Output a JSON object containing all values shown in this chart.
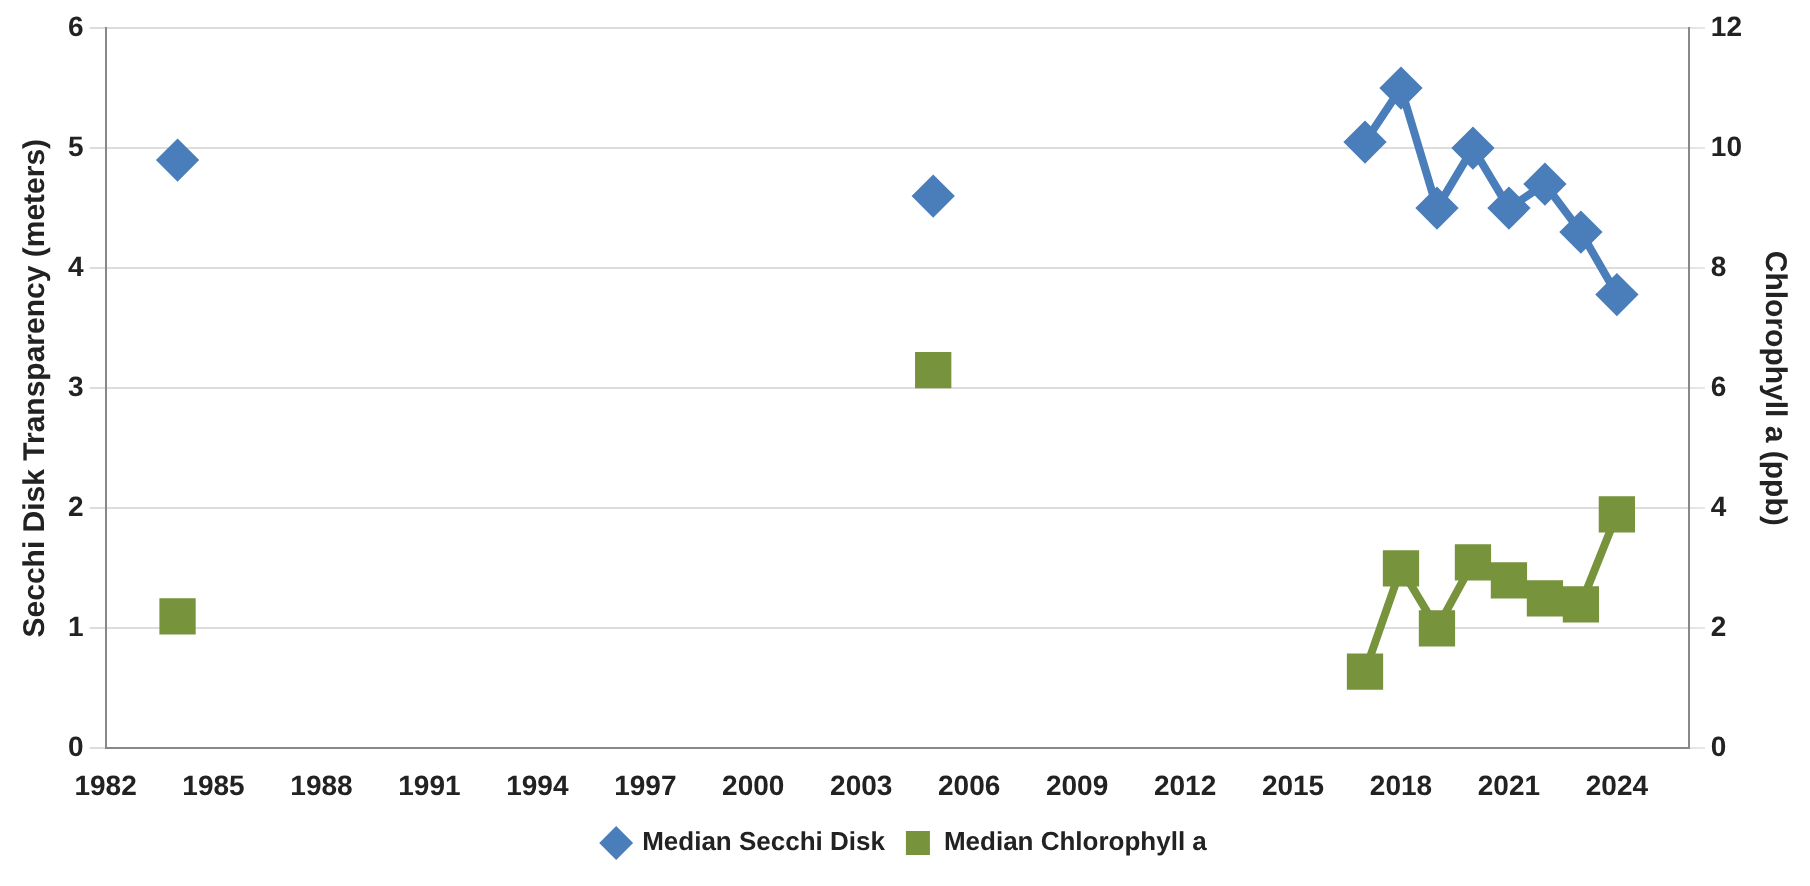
{
  "chart_data": {
    "type": "line",
    "ylabel": "Secchi Disk Transparency (meters)",
    "y2label": "Chlorophyll a (ppb)",
    "x": [
      1984,
      1995,
      2005,
      2010,
      2017,
      2018,
      2019,
      2020,
      2021,
      2022,
      2023,
      2024
    ],
    "series": [
      {
        "name": "Median Secchi Disk",
        "color": "#4a7ebb",
        "marker": "diamond",
        "values": [
          4.9,
          null,
          4.6,
          null,
          5.05,
          5.5,
          4.5,
          5.0,
          4.5,
          4.7,
          4.3,
          3.78
        ]
      },
      {
        "name": "Median Chlorophyll a",
        "color": "#77933c",
        "marker": "square",
        "axis": "y2",
        "values": [
          2.2,
          null,
          6.3,
          null,
          1.28,
          3.0,
          2.0,
          3.1,
          2.8,
          2.5,
          2.4,
          3.9
        ]
      }
    ],
    "xlim": [
      1982,
      2026
    ],
    "xticks": [
      1982,
      1985,
      1988,
      1991,
      1994,
      1997,
      2000,
      2003,
      2006,
      2009,
      2012,
      2015,
      2018,
      2021,
      2024
    ],
    "ylim": [
      0,
      6
    ],
    "yticks": [
      0,
      1,
      2,
      3,
      4,
      5,
      6
    ],
    "y2lim": [
      0,
      12
    ],
    "y2ticks": [
      0,
      2,
      4,
      6,
      8,
      10,
      12
    ],
    "grid": "y",
    "legend": "bottom",
    "line_style": "solid"
  }
}
